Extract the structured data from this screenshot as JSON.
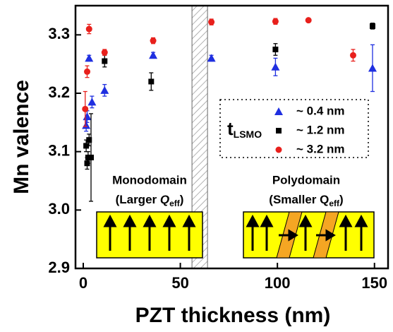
{
  "chart_data": {
    "type": "scatter",
    "x_label": "PZT thickness (nm)",
    "y_label": "Mn valence",
    "xlim": [
      -4,
      157
    ],
    "ylim": [
      2.9,
      3.35
    ],
    "xticks": [
      0,
      50,
      100,
      150
    ],
    "yticks": [
      2.9,
      {
        "value": 3,
        "label": "3.0"
      },
      3.1,
      3.2,
      3.3
    ],
    "shaded_region": [
      56,
      64
    ],
    "legend_title": {
      "main": "t",
      "sub": "LSMO"
    },
    "legend_position": "right",
    "annotations": {
      "left": {
        "line1": "Monodomain",
        "pre": "(Larger ",
        "q": "Q",
        "sub": "eff",
        "post": ")"
      },
      "right": {
        "line1": "Polydomain",
        "pre": "(Smaller Q",
        "sub": "eff",
        "post": ")"
      }
    },
    "series": [
      {
        "name": "~ 0.4 nm",
        "color": "#1f2fe0",
        "marker": "triangle",
        "x": [
          1.5,
          2,
          3,
          4.5,
          11,
          36,
          66,
          99,
          149
        ],
        "values": [
          3.145,
          3.16,
          3.26,
          3.185,
          3.205,
          3.265,
          3.26,
          3.245,
          3.243
        ],
        "errors": [
          0.01,
          0.01,
          0.005,
          0.01,
          0.01,
          0.005,
          0.005,
          0.015,
          0.04
        ]
      },
      {
        "name": "~ 1.2 nm",
        "color": "#000000",
        "marker": "square",
        "x": [
          1.5,
          2,
          2.5,
          3,
          4,
          11,
          35,
          99,
          149
        ],
        "values": [
          3.11,
          3.08,
          3.09,
          3.12,
          3.09,
          3.255,
          3.22,
          3.275,
          3.315
        ],
        "errors": [
          0.01,
          0.01,
          0.01,
          0.01,
          0.075,
          0.01,
          0.015,
          0.01,
          0.005
        ]
      },
      {
        "name": "~ 3.2 nm",
        "color": "#e8201c",
        "marker": "circle",
        "x": [
          1,
          2,
          3,
          11,
          36,
          66,
          99,
          116,
          139
        ],
        "values": [
          3.173,
          3.237,
          3.31,
          3.27,
          3.29,
          3.322,
          3.323,
          3.325,
          3.265
        ],
        "errors": [
          0.03,
          0.01,
          0.008,
          0.005,
          0.005,
          0.005,
          0.005,
          0.003,
          0.01
        ]
      }
    ]
  }
}
